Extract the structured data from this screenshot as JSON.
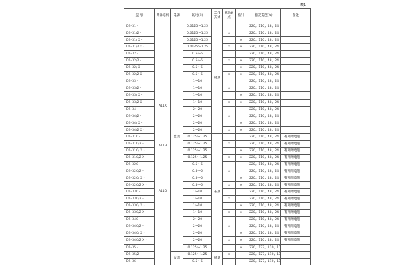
{
  "caption": "表1",
  "headers": {
    "model": "型 号",
    "shell": "壳体结构",
    "power": "电源",
    "delay": "延时(S)",
    "mode": "工作方式",
    "slide": "滑动触点",
    "sign": "指针",
    "voltage": "额定电压(V)",
    "note": "备注"
  },
  "shell_labels": [
    "A11K",
    "A11H",
    "A11Q"
  ],
  "power_labels": {
    "dc": "直流",
    "ac": "交流"
  },
  "mode_labels": {
    "short1": "短期",
    "long": "长期",
    "short2": "短期"
  },
  "mark": "×",
  "rows": [
    {
      "model": "DS-31 -",
      "delay": "0.0125～1.25",
      "slide": "",
      "sign": "",
      "voltage": "220，110，48，24",
      "note": ""
    },
    {
      "model": "DS-31/2 -",
      "delay": "0.0125～1.25",
      "slide": "×",
      "sign": "",
      "voltage": "220，110，48，24",
      "note": ""
    },
    {
      "model": "DS-31/ X -",
      "delay": "0.0125～1.25",
      "slide": "",
      "sign": "×",
      "voltage": "220，110，48，24",
      "note": ""
    },
    {
      "model": "DS-31/2 X -",
      "delay": "0.0125～1.25",
      "slide": "×",
      "sign": "×",
      "voltage": "220，110，48，24",
      "note": ""
    },
    {
      "model": "DS-32 -",
      "delay": "0.5～5",
      "slide": "",
      "sign": "",
      "voltage": "220，110，48，24",
      "note": ""
    },
    {
      "model": "DS-32/2 -",
      "delay": "0.5～5",
      "slide": "×",
      "sign": "×",
      "voltage": "220，110，48，24",
      "note": ""
    },
    {
      "model": "DS-32/ X -",
      "delay": "0.5～5",
      "slide": "",
      "sign": "×",
      "voltage": "220，110，48，24",
      "note": ""
    },
    {
      "model": "DS-32/2 X -",
      "delay": "0.5～5",
      "slide": "×",
      "sign": "×",
      "voltage": "220，110，48，24",
      "note": ""
    },
    {
      "model": "DS-33 -",
      "delay": "1～10",
      "slide": "",
      "sign": "",
      "voltage": "220，110，48，24",
      "note": ""
    },
    {
      "model": "DS-33/2 -",
      "delay": "1～10",
      "slide": "×",
      "sign": "",
      "voltage": "220，110，48，24",
      "note": ""
    },
    {
      "model": "DS-33/ X -",
      "delay": "1～10",
      "slide": "",
      "sign": "×",
      "voltage": "220，110，48，24",
      "note": ""
    },
    {
      "model": "DS-33/2 X -",
      "delay": "1～10",
      "slide": "×",
      "sign": "×",
      "voltage": "220，110，48，24",
      "note": ""
    },
    {
      "model": "DS-34 -",
      "delay": "2～20",
      "slide": "",
      "sign": "",
      "voltage": "220，110，48，24",
      "note": ""
    },
    {
      "model": "DS-34/2 -",
      "delay": "2～20",
      "slide": "×",
      "sign": "",
      "voltage": "220，110，48，24",
      "note": ""
    },
    {
      "model": "DS-34/ X -",
      "delay": "2～20",
      "slide": "",
      "sign": "×",
      "voltage": "220，110，48，24",
      "note": ""
    },
    {
      "model": "DS-34/2 X -",
      "delay": "2～20",
      "slide": "×",
      "sign": "×",
      "voltage": "220，110，48，24",
      "note": ""
    },
    {
      "model": "DS-31C -",
      "delay": "0.125～1.25",
      "slide": "",
      "sign": "",
      "voltage": "220，110，48，24",
      "note": "有外附电阻"
    },
    {
      "model": "DS-31C/2 -",
      "delay": "0.125～1.25",
      "slide": "×",
      "sign": "",
      "voltage": "220，110，48，24",
      "note": "有外附电阻"
    },
    {
      "model": "DS-31C/ X -",
      "delay": "0.125～1.25",
      "slide": "",
      "sign": "×",
      "voltage": "220，110，48，24",
      "note": "有外附电阻"
    },
    {
      "model": "DS-31C/2 X -",
      "delay": "0.125～1.25",
      "slide": "×",
      "sign": "×",
      "voltage": "220，110，48，24",
      "note": "有外附电阻"
    },
    {
      "model": "DS-32C -",
      "delay": "0.5～5",
      "slide": "",
      "sign": "",
      "voltage": "220，110，48，24",
      "note": "有外附电阻"
    },
    {
      "model": "DS-32C/2 -",
      "delay": "0.5～5",
      "slide": "×",
      "sign": "",
      "voltage": "220，110，48，24",
      "note": "有外附电阻"
    },
    {
      "model": "DS-32C/ X -",
      "delay": "0.5～5",
      "slide": "",
      "sign": "×",
      "voltage": "220，110，48，24",
      "note": "有外附电阻"
    },
    {
      "model": "DS-32C/2 X -",
      "delay": "0.5～5",
      "slide": "×",
      "sign": "×",
      "voltage": "220，110，48，24",
      "note": "有外附电阻"
    },
    {
      "model": "DS-33C -",
      "delay": "1～10",
      "slide": "",
      "sign": "",
      "voltage": "220，110，48，24",
      "note": "有外附电阻"
    },
    {
      "model": "DS-33C/2 -",
      "delay": "1～10",
      "slide": "×",
      "sign": "",
      "voltage": "220，110，48，24",
      "note": "有外附电阻"
    },
    {
      "model": "DS-33C/ X -",
      "delay": "1～10",
      "slide": "",
      "sign": "×",
      "voltage": "220，110，48，24",
      "note": "有外附电阻"
    },
    {
      "model": "DS-33C/2 X -",
      "delay": "1～10",
      "slide": "×",
      "sign": "×",
      "voltage": "220，110，48，24",
      "note": "有外附电阻"
    },
    {
      "model": "DS-34C -",
      "delay": "2～20",
      "slide": "",
      "sign": "",
      "voltage": "220，110，48，24",
      "note": "有外附电阻"
    },
    {
      "model": "DS-34C/2 -",
      "delay": "2～20",
      "slide": "×",
      "sign": "",
      "voltage": "220，110，48，24",
      "note": "有外附电阻"
    },
    {
      "model": "DS-34C/ X -",
      "delay": "2～20",
      "slide": "",
      "sign": "×",
      "voltage": "220，110，48，24",
      "note": "有外附电阻"
    },
    {
      "model": "DS-34C/2 X -",
      "delay": "2～20",
      "slide": "×",
      "sign": "×",
      "voltage": "220，110，48，24",
      "note": "有外附电阻"
    },
    {
      "model": "DS-35 -",
      "delay": "0.125～1.25",
      "slide": "",
      "sign": "×",
      "voltage": "220，127，110，100",
      "note": ""
    },
    {
      "model": "DS-35/2 -",
      "delay": "0.125～1.25",
      "slide": "×",
      "sign": "",
      "voltage": "220，127，110，100",
      "note": ""
    },
    {
      "model": "DS-36 -",
      "delay": "0.5～5",
      "slide": "",
      "sign": "",
      "voltage": "220，127，110，100",
      "note": ""
    }
  ]
}
